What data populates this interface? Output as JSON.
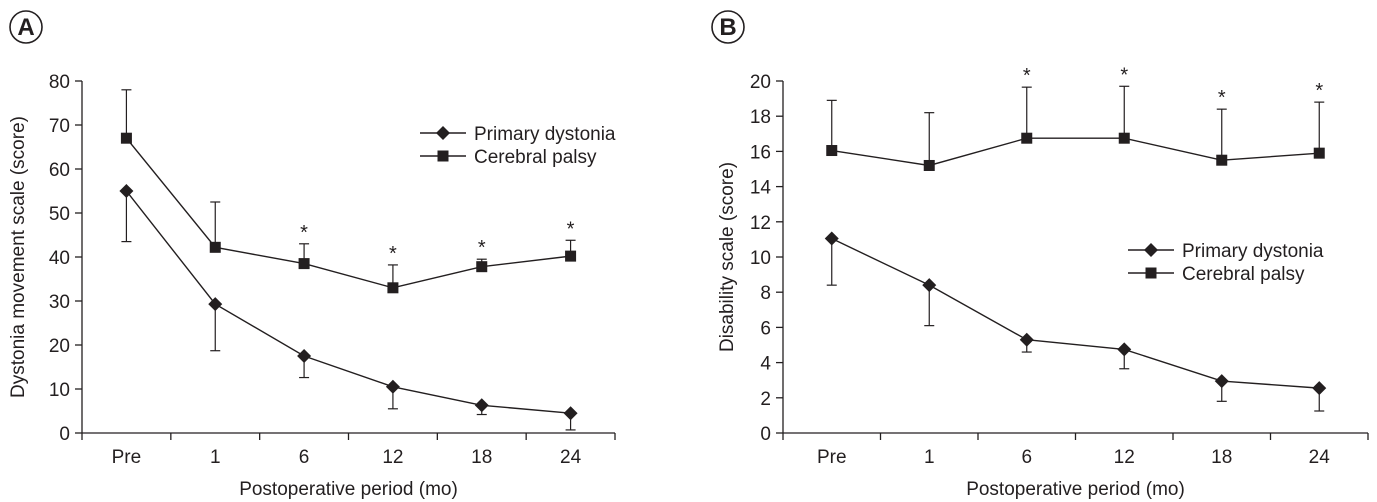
{
  "chart_data": [
    {
      "type": "line",
      "panel_label": "A",
      "title": "",
      "xlabel": "Postoperative period (mo)",
      "ylabel": "Dystonia movement scale (score)",
      "categories": [
        "Pre",
        "1",
        "6",
        "12",
        "18",
        "24"
      ],
      "ylim": [
        0,
        80
      ],
      "yticks": [
        0,
        10,
        20,
        30,
        40,
        50,
        60,
        70,
        80
      ],
      "grid": false,
      "legend_position": "top-right",
      "series": [
        {
          "name": "Primary dystonia",
          "marker": "diamond",
          "color": "#231f20",
          "values": [
            55,
            29.3,
            17.5,
            10.5,
            6.3,
            4.5
          ],
          "error_low": [
            43.5,
            18.7,
            12.6,
            5.5,
            4.2,
            0.7
          ],
          "error_high": [
            null,
            null,
            null,
            null,
            null,
            null
          ]
        },
        {
          "name": "Cerebral palsy",
          "marker": "square",
          "color": "#231f20",
          "values": [
            67,
            42.2,
            38.5,
            33,
            37.8,
            40.2
          ],
          "error_low": [
            null,
            null,
            null,
            null,
            null,
            null
          ],
          "error_high": [
            78,
            52.5,
            43,
            38.2,
            39.5,
            43.8
          ]
        }
      ],
      "annotations": [
        {
          "text": "*",
          "category": "6"
        },
        {
          "text": "*",
          "category": "12"
        },
        {
          "text": "*",
          "category": "18"
        },
        {
          "text": "*",
          "category": "24"
        }
      ]
    },
    {
      "type": "line",
      "panel_label": "B",
      "title": "",
      "xlabel": "Postoperative period (mo)",
      "ylabel": "Disability scale (score)",
      "categories": [
        "Pre",
        "1",
        "6",
        "12",
        "18",
        "24"
      ],
      "ylim": [
        0,
        20
      ],
      "yticks": [
        0,
        2,
        4,
        6,
        8,
        10,
        12,
        14,
        16,
        18,
        20
      ],
      "grid": false,
      "legend_position": "center-right",
      "series": [
        {
          "name": "Primary dystonia",
          "marker": "diamond",
          "color": "#231f20",
          "values": [
            11.05,
            8.4,
            5.3,
            4.75,
            2.95,
            2.55
          ],
          "error_low": [
            8.4,
            6.1,
            4.6,
            3.65,
            1.8,
            1.25
          ],
          "error_high": [
            null,
            null,
            null,
            null,
            null,
            null
          ]
        },
        {
          "name": "Cerebral palsy",
          "marker": "square",
          "color": "#231f20",
          "values": [
            16.05,
            15.2,
            16.75,
            16.75,
            15.5,
            15.9
          ],
          "error_low": [
            null,
            null,
            null,
            null,
            null,
            null
          ],
          "error_high": [
            18.9,
            18.2,
            19.65,
            19.7,
            18.4,
            18.8
          ]
        }
      ],
      "annotations": [
        {
          "text": "*",
          "category": "6"
        },
        {
          "text": "*",
          "category": "12"
        },
        {
          "text": "*",
          "category": "18"
        },
        {
          "text": "*",
          "category": "24"
        }
      ]
    }
  ]
}
